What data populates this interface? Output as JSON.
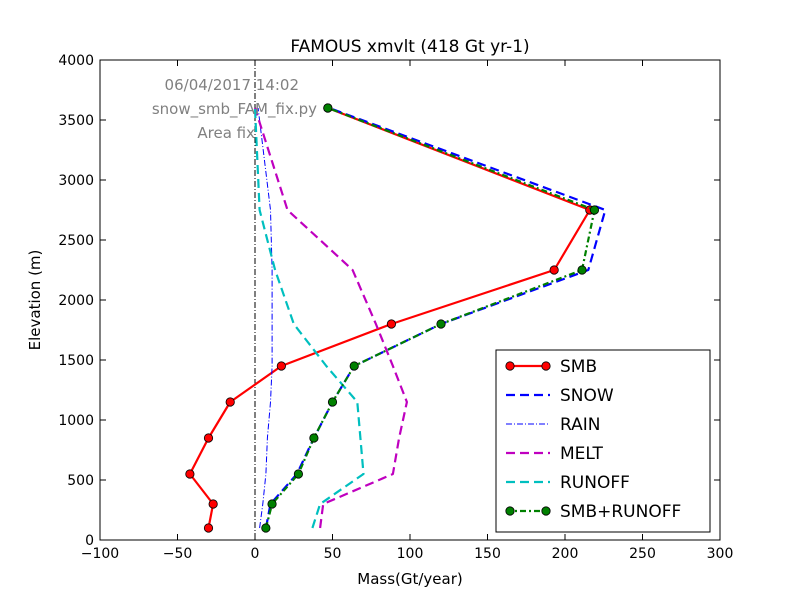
{
  "chart_data": {
    "type": "line",
    "title": "FAMOUS xmvlt (418 Gt yr-1)",
    "xlabel": "Mass(Gt/year)",
    "ylabel": "Elevation (m)",
    "xlim": [
      -100,
      300
    ],
    "ylim": [
      0,
      4000
    ],
    "xticks": [
      -100,
      -50,
      0,
      50,
      100,
      150,
      200,
      250,
      300
    ],
    "yticks": [
      0,
      500,
      1000,
      1500,
      2000,
      2500,
      3000,
      3500,
      4000
    ],
    "xtick_labels": [
      "−100",
      "−50",
      "0",
      "50",
      "100",
      "150",
      "200",
      "250",
      "300"
    ],
    "ytick_labels": [
      "0",
      "500",
      "1000",
      "1500",
      "2000",
      "2500",
      "3000",
      "3500",
      "4000"
    ],
    "grid": false,
    "legend_position": "lower-right",
    "annotations": [
      "06/04/2017 14:02",
      "snow_smb_FAM_fix.py",
      "Area fix"
    ],
    "reference_line": {
      "x": 0,
      "style": "dash-dot",
      "color": "#000000"
    },
    "series": [
      {
        "name": "SMB",
        "color": "#ff0000",
        "style": "solid",
        "markers": true,
        "x": [
          -30,
          -27,
          -42,
          -30,
          -16,
          17,
          88,
          193,
          216,
          47
        ],
        "y": [
          100,
          300,
          550,
          850,
          1150,
          1450,
          1800,
          2250,
          2750,
          3600
        ]
      },
      {
        "name": "SNOW",
        "color": "#0000ff",
        "style": "dashed",
        "markers": false,
        "x": [
          7,
          10,
          27,
          38,
          50,
          64,
          120,
          215,
          226,
          48
        ],
        "y": [
          100,
          300,
          550,
          850,
          1150,
          1450,
          1800,
          2250,
          2750,
          3600
        ]
      },
      {
        "name": "RAIN",
        "color": "#0000ff",
        "style": "dash-dot",
        "markers": false,
        "x": [
          3,
          5,
          7,
          8,
          10,
          11,
          11,
          11,
          10,
          2
        ],
        "y": [
          100,
          300,
          550,
          850,
          1150,
          1450,
          1800,
          2250,
          2750,
          3600
        ]
      },
      {
        "name": "MELT",
        "color": "#bf00bf",
        "style": "dashed",
        "markers": false,
        "x": [
          42,
          44,
          89,
          93,
          98,
          89,
          78,
          63,
          21,
          0
        ],
        "y": [
          100,
          300,
          550,
          850,
          1150,
          1450,
          1800,
          2250,
          2750,
          3600
        ]
      },
      {
        "name": "RUNOFF",
        "color": "#00bfbf",
        "style": "dashed",
        "markers": false,
        "x": [
          37,
          42,
          70,
          68,
          66,
          46,
          25,
          13,
          3,
          0
        ],
        "y": [
          100,
          300,
          550,
          850,
          1150,
          1450,
          1800,
          2250,
          2750,
          3600
        ]
      },
      {
        "name": "SMB+RUNOFF",
        "color": "#008000",
        "style": "dash-dot",
        "markers": true,
        "x": [
          7,
          11,
          28,
          38,
          50,
          64,
          120,
          211,
          219,
          47
        ],
        "y": [
          100,
          300,
          550,
          850,
          1150,
          1450,
          1800,
          2250,
          2750,
          3600
        ]
      }
    ]
  }
}
